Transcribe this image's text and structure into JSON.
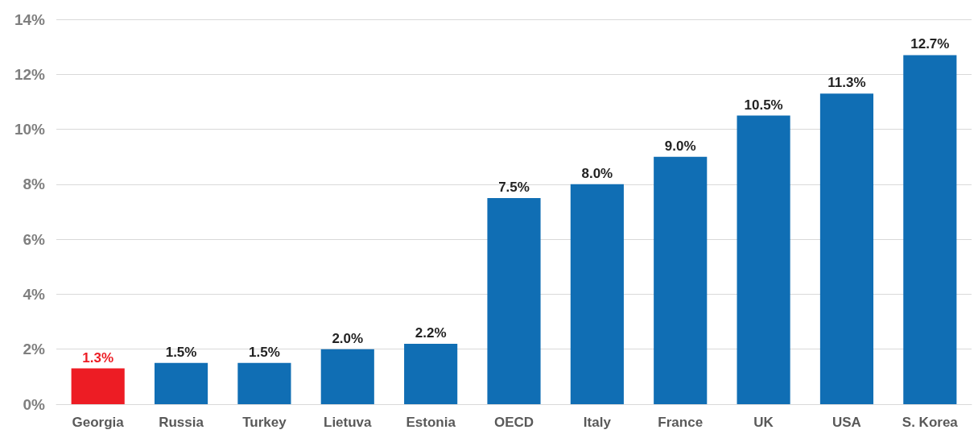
{
  "chart_data": {
    "type": "bar",
    "categories": [
      "Georgia",
      "Russia",
      "Turkey",
      "Lietuva",
      "Estonia",
      "OECD",
      "Italy",
      "France",
      "UK",
      "USA",
      "S. Korea"
    ],
    "values": [
      1.3,
      1.5,
      1.5,
      2.0,
      2.2,
      7.5,
      8.0,
      9.0,
      10.5,
      11.3,
      12.7
    ],
    "colors": [
      "#ed1c24",
      "#106eb4",
      "#106eb4",
      "#106eb4",
      "#106eb4",
      "#106eb4",
      "#106eb4",
      "#106eb4",
      "#106eb4",
      "#106eb4",
      "#106eb4"
    ],
    "value_labels": [
      "1.3%",
      "1.5%",
      "1.5%",
      "2.0%",
      "2.2%",
      "7.5%",
      "8.0%",
      "9.0%",
      "10.5%",
      "11.3%",
      "12.7%"
    ],
    "ylim": [
      0,
      14
    ],
    "yticks": [
      {
        "value": 0,
        "label": "0%"
      },
      {
        "value": 2,
        "label": "2%"
      },
      {
        "value": 4,
        "label": "4%"
      },
      {
        "value": 6,
        "label": "6%"
      },
      {
        "value": 8,
        "label": "8%"
      },
      {
        "value": 10,
        "label": "10%"
      },
      {
        "value": 12,
        "label": "12%"
      },
      {
        "value": 14,
        "label": "14%"
      }
    ],
    "grid": "y"
  }
}
